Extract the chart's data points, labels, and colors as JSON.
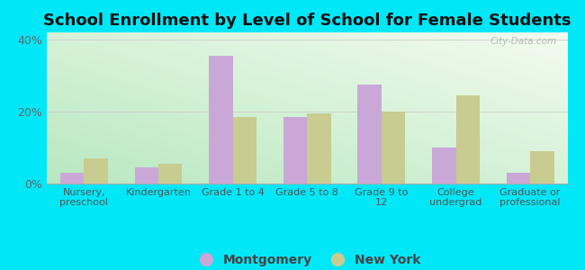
{
  "title": "School Enrollment by Level of School for Female Students",
  "categories": [
    "Nursery,\npreschool",
    "Kindergarten",
    "Grade 1 to 4",
    "Grade 5 to 8",
    "Grade 9 to\n12",
    "College\nundergrad",
    "Graduate or\nprofessional"
  ],
  "montgomery": [
    3.0,
    4.5,
    35.5,
    18.5,
    27.5,
    10.0,
    3.0
  ],
  "new_york": [
    7.0,
    5.5,
    18.5,
    19.5,
    20.0,
    24.5,
    9.0
  ],
  "montgomery_color": "#c9a8d8",
  "new_york_color": "#c8cc90",
  "background_outer": "#00e8f8",
  "background_inner_bottom_left": "#b8e8c0",
  "background_inner_top_right": "#f4fcf0",
  "yticks": [
    0,
    20,
    40
  ],
  "ylim": [
    0,
    42
  ],
  "watermark": "City-Data.com",
  "legend_montgomery": "Montgomery",
  "legend_new_york": "New York",
  "title_fontsize": 13,
  "tick_label_fontsize": 8,
  "legend_fontsize": 10
}
